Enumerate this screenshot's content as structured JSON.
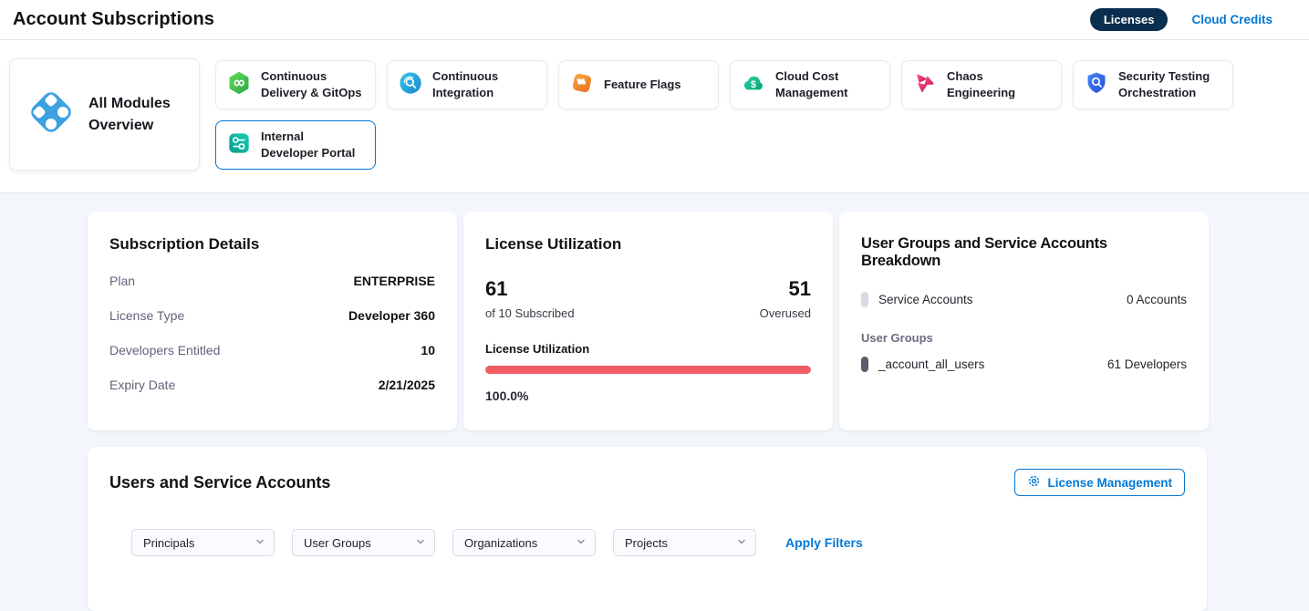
{
  "header": {
    "title": "Account Subscriptions",
    "licenses_tab": "Licenses",
    "cloud_credits_tab": "Cloud Credits"
  },
  "modules": {
    "overview_label": "All Modules Overview",
    "tiles": [
      {
        "label": "Continuous Delivery & GitOps",
        "icon": "cd-hexagon-infinity-icon"
      },
      {
        "label": "Continuous Integration",
        "icon": "ci-circle-search-icon"
      },
      {
        "label": "Feature Flags",
        "icon": "feature-flag-icon"
      },
      {
        "label": "Cloud Cost Management",
        "icon": "cloud-dollar-icon"
      },
      {
        "label": "Chaos Engineering",
        "icon": "chaos-pinwheel-icon"
      },
      {
        "label": "Security Testing Orchestration",
        "icon": "shield-search-icon"
      },
      {
        "label": "Internal Developer Portal",
        "icon": "sliders-icon",
        "selected": true
      }
    ]
  },
  "subscription": {
    "title": "Subscription Details",
    "rows": [
      {
        "label": "Plan",
        "value": "ENTERPRISE"
      },
      {
        "label": "License Type",
        "value": "Developer 360"
      },
      {
        "label": "Developers Entitled",
        "value": "10"
      },
      {
        "label": "Expiry Date",
        "value": "2/21/2025"
      }
    ]
  },
  "utilization": {
    "title": "License Utilization",
    "subscribed_count": "61",
    "subscribed_caption": "of 10 Subscribed",
    "overused_count": "51",
    "overused_caption": "Overused",
    "bar_label": "License Utilization",
    "percent_label": "100.0%",
    "percent_value": 100,
    "bar_color": "#ee5d63"
  },
  "breakdown": {
    "title": "User Groups and Service Accounts Breakdown",
    "service_accounts_label": "Service Accounts",
    "service_accounts_value": "0 Accounts",
    "user_groups_heading": "User Groups",
    "group_name": "_account_all_users",
    "group_value": "61 Developers"
  },
  "users_section": {
    "title": "Users and Service Accounts",
    "license_management_label": "License Management",
    "filters": [
      {
        "label": "Principals"
      },
      {
        "label": "User Groups"
      },
      {
        "label": "Organizations"
      },
      {
        "label": "Projects"
      }
    ],
    "apply_filters_label": "Apply Filters"
  },
  "colors": {
    "accent_blue": "#0278d5",
    "navy_pill": "#0a2e4e",
    "utilization_red": "#ee5d63",
    "page_background": "#f3f7fc"
  }
}
